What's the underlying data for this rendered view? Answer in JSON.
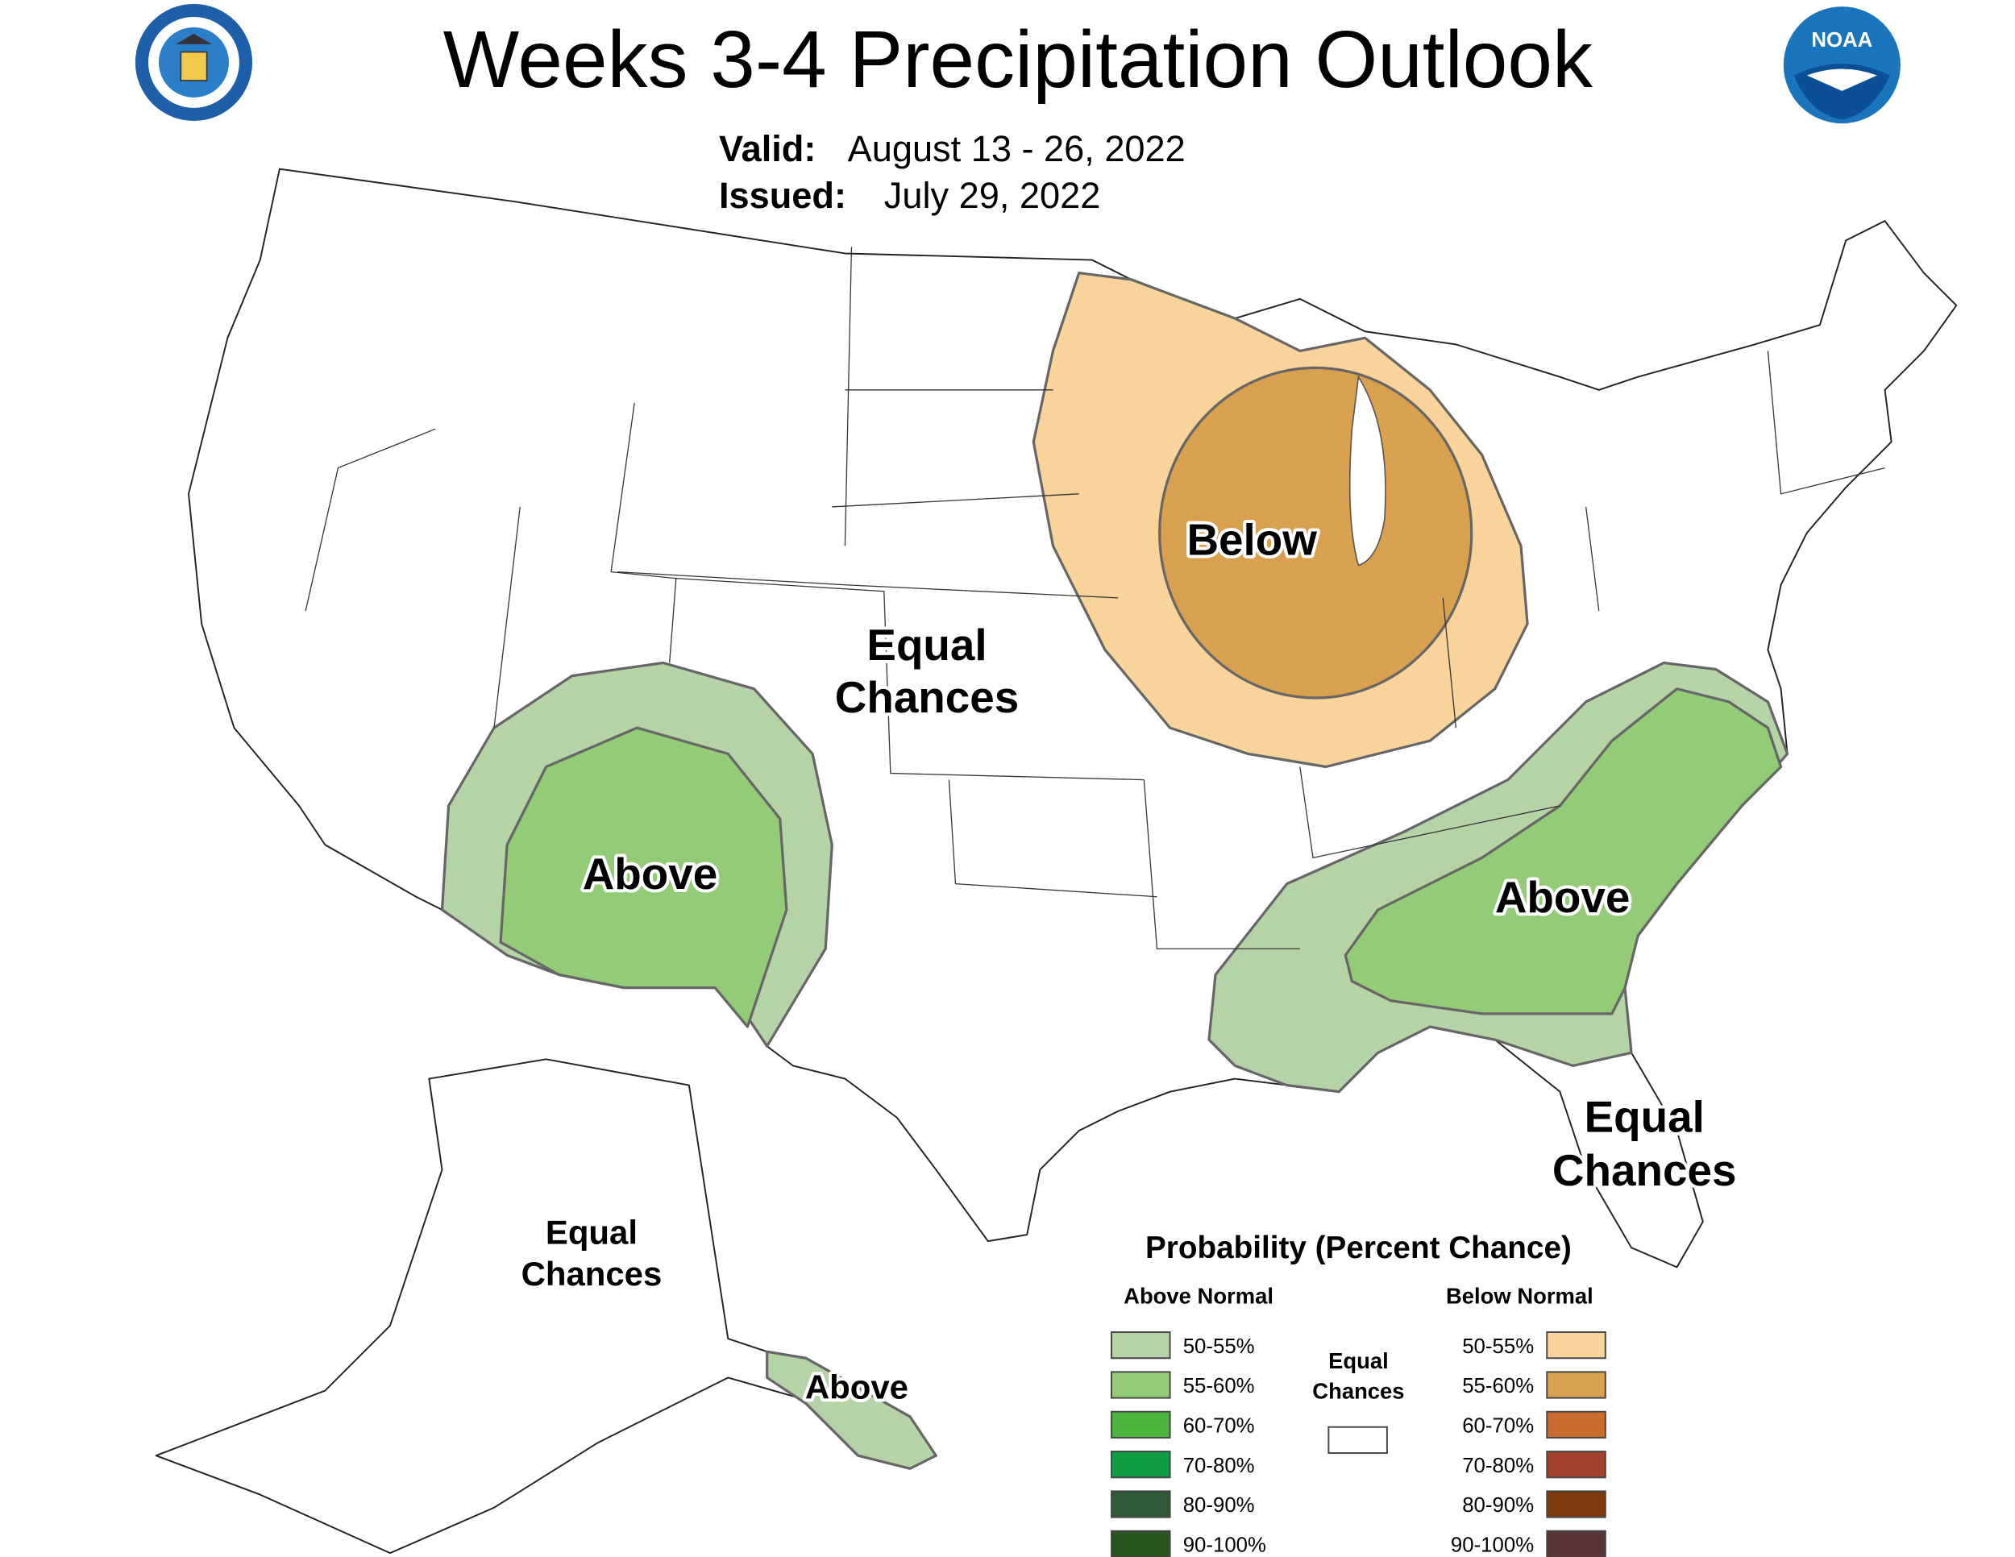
{
  "header": {
    "title": "Weeks 3-4 Precipitation Outlook",
    "valid_label": "Valid:",
    "valid": "August 13 - 26, 2022",
    "issued_label": "Issued:",
    "issued": "July 29, 2022",
    "noaa_logo": "NOAA"
  },
  "map_labels": [
    {
      "lines": [
        "Equal",
        "Chances"
      ]
    },
    {
      "lines": [
        "Below"
      ]
    },
    {
      "lines": [
        "Above"
      ]
    },
    {
      "lines": [
        "Above"
      ]
    },
    {
      "lines": [
        "Equal",
        "Chances"
      ]
    },
    {
      "lines": [
        "Equal",
        "Chances"
      ]
    },
    {
      "lines": [
        "Above"
      ]
    }
  ],
  "legend": {
    "title": "Probability (Percent Chance)",
    "above_heading": "Above Normal",
    "below_heading": "Below Normal",
    "equal_label": [
      "Equal",
      "Chances"
    ],
    "above": [
      {
        "label": "50-55%",
        "color": "#b4d4a8"
      },
      {
        "label": "55-60%",
        "color": "#93cb77"
      },
      {
        "label": "60-70%",
        "color": "#4cb53e"
      },
      {
        "label": "70-80%",
        "color": "#0f9f42"
      },
      {
        "label": "80-90%",
        "color": "#2f5b37"
      },
      {
        "label": "90-100%",
        "color": "#29561f"
      }
    ],
    "below": [
      {
        "label": "50-55%",
        "color": "#f8d49b"
      },
      {
        "label": "55-60%",
        "color": "#d8a04f"
      },
      {
        "label": "60-70%",
        "color": "#c96b2d"
      },
      {
        "label": "70-80%",
        "color": "#a3412f"
      },
      {
        "label": "80-90%",
        "color": "#7f3a0b"
      },
      {
        "label": "90-100%",
        "color": "#5a3535"
      }
    ]
  }
}
